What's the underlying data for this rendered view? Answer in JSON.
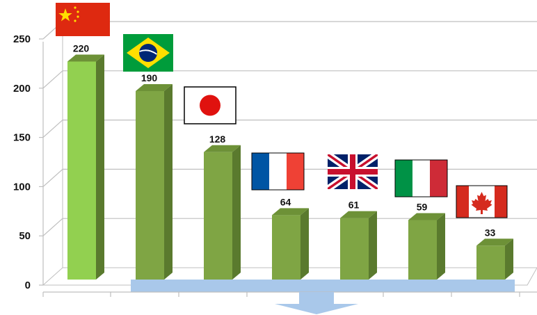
{
  "chart_data": {
    "type": "bar",
    "categories": [
      "China",
      "Brazil",
      "Japan",
      "France",
      "United Kingdom",
      "Italy",
      "Canada"
    ],
    "values": [
      220,
      190,
      128,
      64,
      61,
      59,
      33
    ],
    "data_labels": [
      "220",
      "190",
      "128",
      "64",
      "61",
      "59",
      "33"
    ],
    "ylim": [
      0,
      250
    ],
    "yticks": [
      "0",
      "50",
      "100",
      "150",
      "200",
      "250"
    ],
    "grid": true,
    "bar_style": "3d",
    "category_markers": "national flags above each bar",
    "colors": {
      "highlight_bar": "#92d050",
      "bar": "#7fa544",
      "bar_side": "#5a7a2e",
      "bar_top": "#6d9137",
      "grid": "#bfbfbf",
      "baseline_band": "#a9c8ea",
      "arrow": "#a9c8ea"
    },
    "flags": [
      "china-flag-icon",
      "brazil-flag-icon",
      "japan-flag-icon",
      "france-flag-icon",
      "uk-flag-icon",
      "italy-flag-icon",
      "canada-flag-icon"
    ]
  }
}
